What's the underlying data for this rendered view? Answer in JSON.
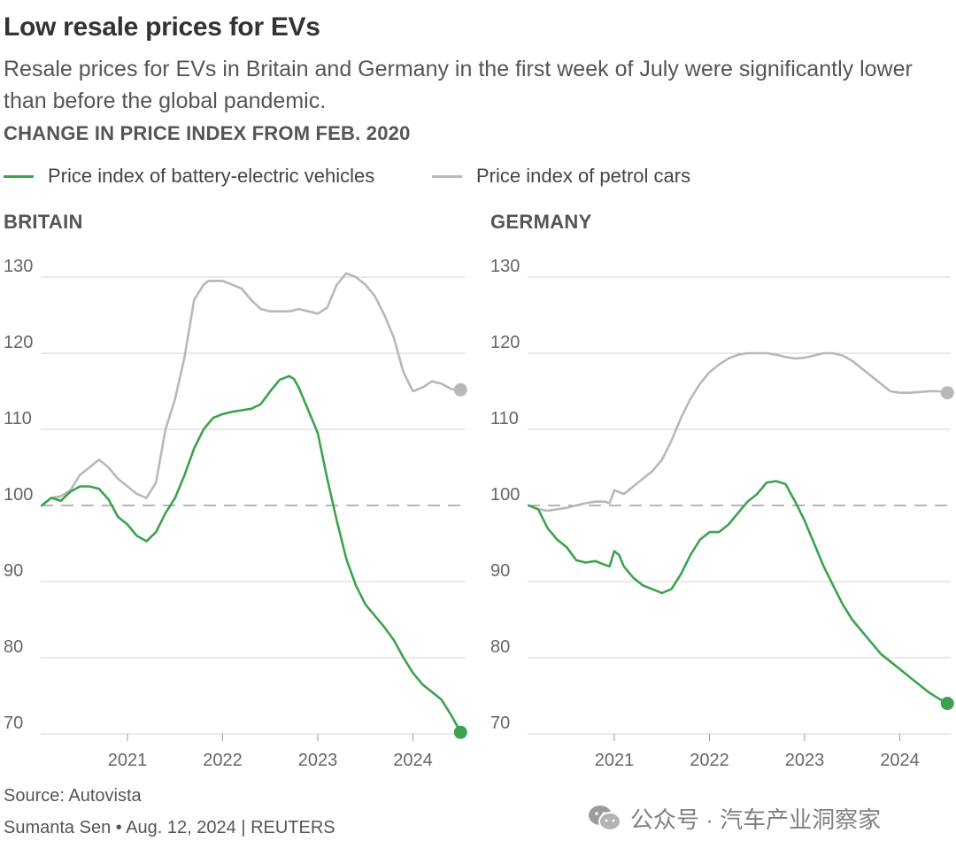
{
  "header": {
    "title": "Low resale prices for EVs",
    "subtitle": "Resale prices for EVs in Britain and Germany in the first week of July were significantly lower than before the global pandemic.",
    "section_label": "CHANGE IN PRICE INDEX FROM FEB. 2020"
  },
  "legend": {
    "ev": "Price index of battery-electric vehicles",
    "petrol": "Price index of petrol cars"
  },
  "colors": {
    "ev": "#3ca24f",
    "petrol": "#b8b8b8",
    "grid": "#d4d4d4",
    "baseline": "#8c8c8c"
  },
  "chart_data": [
    {
      "type": "line",
      "title": "BRITAIN",
      "ylim": [
        70,
        130
      ],
      "yticks": [
        "130",
        "120",
        "110",
        "100",
        "90",
        "80",
        "70"
      ],
      "xlim": [
        2020.1,
        2024.5
      ],
      "xticks": [
        "2021",
        "2022",
        "2023",
        "2024"
      ],
      "baseline": 100,
      "series": [
        {
          "name": "Price index of battery-electric vehicles",
          "x": [
            2020.1,
            2020.2,
            2020.3,
            2020.4,
            2020.5,
            2020.6,
            2020.7,
            2020.8,
            2020.9,
            2021.0,
            2021.1,
            2021.2,
            2021.3,
            2021.4,
            2021.5,
            2021.6,
            2021.7,
            2021.8,
            2021.9,
            2022.0,
            2022.1,
            2022.2,
            2022.3,
            2022.4,
            2022.5,
            2022.6,
            2022.7,
            2022.75,
            2022.8,
            2022.9,
            2023.0,
            2023.1,
            2023.2,
            2023.3,
            2023.4,
            2023.5,
            2023.6,
            2023.7,
            2023.8,
            2023.9,
            2024.0,
            2024.1,
            2024.2,
            2024.3,
            2024.4,
            2024.5
          ],
          "values": [
            100.0,
            101.0,
            100.6,
            101.8,
            102.5,
            102.5,
            102.2,
            100.8,
            98.5,
            97.5,
            96.0,
            95.3,
            96.5,
            99.0,
            101.0,
            104.0,
            107.5,
            110.0,
            111.5,
            112.0,
            112.3,
            112.5,
            112.7,
            113.3,
            115.0,
            116.5,
            117.0,
            116.6,
            115.5,
            112.5,
            109.5,
            103.5,
            98.0,
            93.0,
            89.5,
            87.0,
            85.5,
            84.0,
            82.3,
            80.0,
            78.0,
            76.5,
            75.5,
            74.5,
            72.5,
            70.2
          ]
        },
        {
          "name": "Price index of petrol cars",
          "x": [
            2020.1,
            2020.2,
            2020.3,
            2020.4,
            2020.5,
            2020.6,
            2020.7,
            2020.8,
            2020.9,
            2021.0,
            2021.1,
            2021.2,
            2021.3,
            2021.4,
            2021.5,
            2021.6,
            2021.7,
            2021.8,
            2021.85,
            2021.9,
            2022.0,
            2022.1,
            2022.2,
            2022.3,
            2022.4,
            2022.5,
            2022.6,
            2022.7,
            2022.8,
            2022.9,
            2023.0,
            2023.1,
            2023.2,
            2023.3,
            2023.4,
            2023.5,
            2023.6,
            2023.7,
            2023.8,
            2023.9,
            2024.0,
            2024.1,
            2024.2,
            2024.3,
            2024.4,
            2024.5
          ],
          "values": [
            100.0,
            101.0,
            101.2,
            102.0,
            104.0,
            105.0,
            106.0,
            105.0,
            103.5,
            102.5,
            101.5,
            101.0,
            103.0,
            110.0,
            114.0,
            119.5,
            127.0,
            129.0,
            129.5,
            129.5,
            129.5,
            129.0,
            128.5,
            127.0,
            125.8,
            125.5,
            125.5,
            125.5,
            125.8,
            125.5,
            125.2,
            126.0,
            129.0,
            130.5,
            130.0,
            129.0,
            127.5,
            125.0,
            122.0,
            117.5,
            115.0,
            115.5,
            116.3,
            116.0,
            115.3,
            115.2
          ]
        }
      ]
    },
    {
      "type": "line",
      "title": "GERMANY",
      "ylim": [
        70,
        130
      ],
      "yticks": [
        "130",
        "120",
        "110",
        "100",
        "90",
        "80",
        "70"
      ],
      "xlim": [
        2020.1,
        2024.5
      ],
      "xticks": [
        "2021",
        "2022",
        "2023",
        "2024"
      ],
      "baseline": 100,
      "series": [
        {
          "name": "Price index of battery-electric vehicles",
          "x": [
            2020.1,
            2020.2,
            2020.3,
            2020.4,
            2020.5,
            2020.6,
            2020.7,
            2020.8,
            2020.9,
            2020.95,
            2021.0,
            2021.05,
            2021.1,
            2021.2,
            2021.3,
            2021.4,
            2021.5,
            2021.6,
            2021.7,
            2021.8,
            2021.9,
            2022.0,
            2022.1,
            2022.2,
            2022.3,
            2022.4,
            2022.5,
            2022.6,
            2022.7,
            2022.8,
            2022.9,
            2023.0,
            2023.1,
            2023.2,
            2023.3,
            2023.4,
            2023.5,
            2023.6,
            2023.7,
            2023.8,
            2023.9,
            2024.0,
            2024.1,
            2024.2,
            2024.3,
            2024.4,
            2024.5
          ],
          "values": [
            100.0,
            99.5,
            97.0,
            95.5,
            94.5,
            92.8,
            92.5,
            92.7,
            92.2,
            92.0,
            94.0,
            93.5,
            92.0,
            90.5,
            89.5,
            89.0,
            88.5,
            89.0,
            91.0,
            93.5,
            95.5,
            96.5,
            96.5,
            97.5,
            99.0,
            100.5,
            101.5,
            103.0,
            103.2,
            102.8,
            100.5,
            98.0,
            95.0,
            92.0,
            89.5,
            87.0,
            85.0,
            83.5,
            82.0,
            80.5,
            79.5,
            78.5,
            77.5,
            76.5,
            75.5,
            74.7,
            74.0
          ]
        },
        {
          "name": "Price index of petrol cars",
          "x": [
            2020.1,
            2020.2,
            2020.3,
            2020.4,
            2020.5,
            2020.6,
            2020.7,
            2020.8,
            2020.9,
            2020.95,
            2021.0,
            2021.1,
            2021.2,
            2021.3,
            2021.4,
            2021.5,
            2021.6,
            2021.7,
            2021.8,
            2021.9,
            2022.0,
            2022.1,
            2022.2,
            2022.3,
            2022.4,
            2022.5,
            2022.6,
            2022.7,
            2022.8,
            2022.9,
            2023.0,
            2023.1,
            2023.2,
            2023.3,
            2023.4,
            2023.5,
            2023.6,
            2023.7,
            2023.8,
            2023.9,
            2024.0,
            2024.1,
            2024.2,
            2024.3,
            2024.4,
            2024.5
          ],
          "values": [
            100.0,
            99.5,
            99.3,
            99.5,
            99.7,
            100.0,
            100.3,
            100.5,
            100.5,
            100.3,
            102.0,
            101.5,
            102.5,
            103.5,
            104.5,
            106.0,
            108.5,
            111.5,
            114.0,
            116.0,
            117.5,
            118.5,
            119.3,
            119.8,
            120.0,
            120.0,
            120.0,
            119.8,
            119.5,
            119.3,
            119.4,
            119.7,
            120.0,
            120.0,
            119.7,
            119.0,
            118.0,
            117.0,
            116.0,
            115.0,
            114.8,
            114.8,
            114.9,
            115.0,
            115.0,
            114.8
          ]
        }
      ]
    }
  ],
  "footer": {
    "source": "Source: Autovista",
    "credit": "Sumanta Sen • Aug. 12, 2024 | REUTERS"
  },
  "watermark": {
    "text": "公众号 · 汽车产业洞察家",
    "icon": "wechat-icon"
  }
}
